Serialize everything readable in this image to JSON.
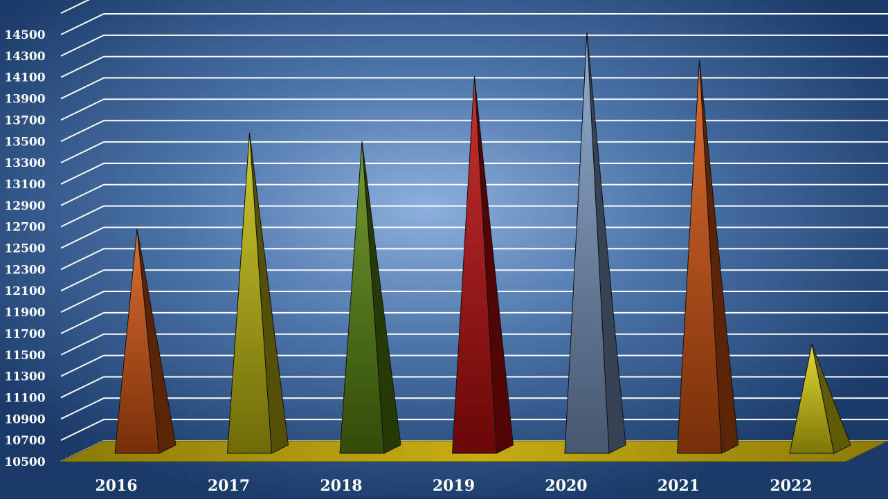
{
  "chart_data": {
    "type": "bar",
    "categories": [
      "2016",
      "2017",
      "2018",
      "2019",
      "2020",
      "2021",
      "2022"
    ],
    "values": [
      12680,
      13580,
      13500,
      14110,
      14520,
      14260,
      11600
    ],
    "title": "",
    "xlabel": "",
    "ylabel": "",
    "ylim": [
      10500,
      14500
    ],
    "yticks": [
      "10500",
      "10700",
      "10900",
      "11100",
      "11300",
      "11500",
      "11700",
      "11900",
      "12100",
      "12300",
      "12500",
      "12700",
      "12900",
      "13100",
      "13300",
      "13500",
      "13700",
      "13900",
      "14100",
      "14300",
      "14500"
    ],
    "grid": true,
    "legend": "none",
    "colors": [
      "#d9560e",
      "#c8c20e",
      "#5a8a0e",
      "#c00d0d",
      "#7f9fc8",
      "#d9560e",
      "#e0d60e"
    ],
    "floor_color": "#b09a10",
    "background_color": "#2a5080"
  }
}
